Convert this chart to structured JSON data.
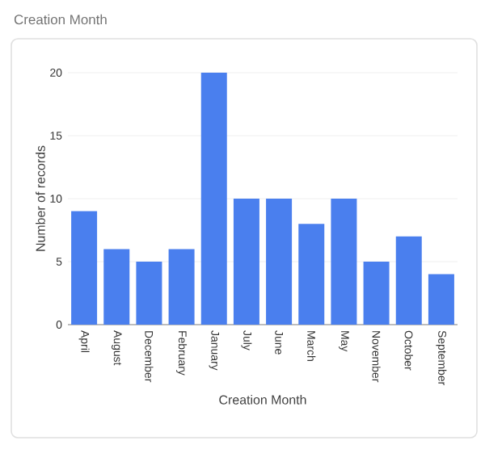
{
  "chart_data": {
    "type": "bar",
    "title": "Creation Month",
    "xlabel": "Creation Month",
    "ylabel": "Number of records",
    "categories": [
      "April",
      "August",
      "December",
      "February",
      "January",
      "July",
      "June",
      "March",
      "May",
      "November",
      "October",
      "September"
    ],
    "values": [
      9,
      6,
      5,
      6,
      20,
      10,
      10,
      8,
      10,
      5,
      7,
      4
    ],
    "color": "#4a7fee",
    "ylim": [
      0,
      20
    ],
    "yticks": [
      0,
      5,
      10,
      15,
      20
    ],
    "grid": "y"
  }
}
